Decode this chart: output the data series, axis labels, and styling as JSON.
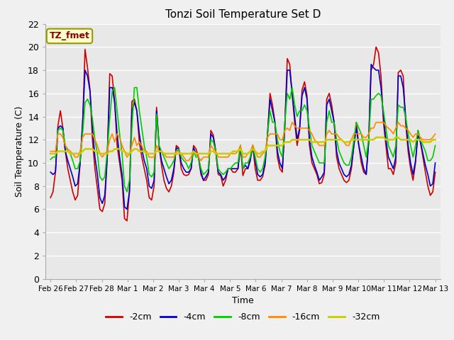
{
  "title": "Tonzi Soil Temperature Set D",
  "xlabel": "Time",
  "ylabel": "Soil Temperature (C)",
  "ylim": [
    0,
    22
  ],
  "yticks": [
    0,
    2,
    4,
    6,
    8,
    10,
    12,
    14,
    16,
    18,
    20,
    22
  ],
  "annotation": "TZ_fmet",
  "series": {
    "-2cm": {
      "color": "#cc0000",
      "lw": 1.2
    },
    "-4cm": {
      "color": "#0000cc",
      "lw": 1.2
    },
    "-8cm": {
      "color": "#00cc00",
      "lw": 1.2
    },
    "-16cm": {
      "color": "#ff8800",
      "lw": 1.2
    },
    "-32cm": {
      "color": "#cccc00",
      "lw": 1.8
    }
  },
  "x_tick_labels": [
    "Feb 26",
    "Feb 27",
    "Feb 28",
    "Mar 1",
    "Mar 2",
    "Mar 3",
    "Mar 4",
    "Mar 5",
    "Mar 6",
    "Mar 7",
    "Mar 8",
    "Mar 9",
    "Mar 10",
    "Mar 11",
    "Mar 12",
    "Mar 13"
  ],
  "data_2cm": [
    7.0,
    7.5,
    9.2,
    13.2,
    14.5,
    13.0,
    11.0,
    9.5,
    8.5,
    7.5,
    6.8,
    7.2,
    10.0,
    13.2,
    19.8,
    18.2,
    16.3,
    12.0,
    9.5,
    7.8,
    6.0,
    5.8,
    6.5,
    10.5,
    17.7,
    17.5,
    15.3,
    11.5,
    10.0,
    8.5,
    5.2,
    5.0,
    7.5,
    15.3,
    15.5,
    14.5,
    11.8,
    10.5,
    9.5,
    8.5,
    7.0,
    6.8,
    8.0,
    14.8,
    11.5,
    9.8,
    8.5,
    7.8,
    7.5,
    8.0,
    9.2,
    11.5,
    11.3,
    9.5,
    9.0,
    8.9,
    9.0,
    9.5,
    11.5,
    11.2,
    10.5,
    9.0,
    8.5,
    8.5,
    9.0,
    12.8,
    12.4,
    11.0,
    9.0,
    8.9,
    8.0,
    8.5,
    9.5,
    9.5,
    9.2,
    9.2,
    9.5,
    11.5,
    8.9,
    9.5,
    9.5,
    10.5,
    11.5,
    9.5,
    8.5,
    8.5,
    8.8,
    9.8,
    12.5,
    16.0,
    15.0,
    13.5,
    10.5,
    9.5,
    9.2,
    13.2,
    19.0,
    18.5,
    15.8,
    13.5,
    11.5,
    12.8,
    16.3,
    17.0,
    15.8,
    11.5,
    10.0,
    9.5,
    9.0,
    8.2,
    8.3,
    9.0,
    15.5,
    16.0,
    15.0,
    13.5,
    10.5,
    9.5,
    9.0,
    8.5,
    8.3,
    8.5,
    9.5,
    11.5,
    13.5,
    11.5,
    10.0,
    9.2,
    9.0,
    11.8,
    18.0,
    18.5,
    20.0,
    19.5,
    17.5,
    13.5,
    11.5,
    9.5,
    9.5,
    9.0,
    10.0,
    17.8,
    18.0,
    17.5,
    13.5,
    11.0,
    9.5,
    8.5,
    10.0,
    12.8,
    11.8,
    10.5,
    9.2,
    8.0,
    7.2,
    7.5,
    9.2
  ],
  "data_4cm": [
    9.2,
    9.0,
    9.2,
    13.0,
    13.2,
    13.0,
    11.0,
    10.2,
    9.5,
    8.8,
    8.0,
    8.2,
    10.0,
    13.5,
    18.0,
    17.5,
    16.2,
    13.0,
    10.5,
    9.0,
    7.0,
    6.5,
    7.2,
    10.5,
    16.5,
    16.5,
    15.2,
    12.5,
    10.5,
    9.0,
    6.2,
    6.0,
    7.5,
    14.5,
    15.2,
    14.5,
    12.5,
    11.2,
    10.2,
    9.5,
    8.0,
    7.8,
    8.5,
    14.5,
    11.5,
    10.2,
    9.5,
    8.8,
    8.2,
    8.5,
    9.5,
    11.3,
    11.2,
    10.0,
    9.5,
    9.2,
    9.2,
    9.5,
    11.3,
    10.8,
    10.5,
    9.2,
    8.5,
    8.8,
    9.2,
    12.5,
    12.2,
    11.0,
    9.2,
    9.0,
    8.5,
    8.8,
    9.5,
    9.5,
    9.5,
    9.5,
    9.5,
    11.5,
    9.5,
    9.8,
    9.5,
    10.2,
    11.5,
    10.2,
    9.0,
    8.8,
    9.0,
    10.0,
    12.5,
    15.5,
    14.5,
    13.5,
    11.0,
    10.0,
    9.5,
    13.2,
    18.0,
    18.0,
    16.0,
    14.0,
    12.0,
    13.0,
    15.8,
    16.5,
    15.5,
    12.0,
    10.5,
    9.8,
    9.2,
    8.5,
    8.8,
    9.2,
    15.0,
    15.5,
    14.5,
    13.5,
    11.0,
    10.0,
    9.5,
    9.0,
    8.8,
    9.0,
    9.8,
    11.5,
    13.0,
    11.5,
    10.5,
    9.5,
    9.0,
    11.8,
    18.5,
    18.2,
    18.0,
    18.0,
    16.5,
    14.0,
    12.0,
    10.5,
    10.0,
    9.5,
    10.5,
    17.5,
    17.5,
    16.5,
    14.0,
    11.5,
    10.0,
    9.0,
    10.2,
    12.5,
    11.8,
    10.8,
    9.8,
    9.0,
    8.0,
    8.2,
    10.0
  ],
  "data_8cm": [
    10.3,
    10.5,
    10.5,
    12.8,
    13.0,
    12.8,
    11.5,
    11.0,
    10.8,
    10.2,
    9.5,
    9.5,
    10.2,
    12.5,
    15.2,
    15.5,
    15.0,
    13.8,
    12.0,
    10.8,
    8.8,
    8.5,
    8.8,
    11.0,
    13.8,
    16.2,
    16.5,
    14.5,
    12.5,
    10.8,
    8.0,
    7.5,
    8.5,
    13.0,
    16.5,
    16.5,
    14.5,
    13.0,
    11.5,
    10.5,
    9.0,
    8.8,
    9.2,
    14.2,
    11.5,
    11.0,
    10.5,
    10.0,
    9.5,
    9.8,
    10.2,
    11.0,
    11.2,
    10.5,
    10.2,
    10.0,
    9.5,
    10.0,
    11.0,
    10.5,
    10.5,
    9.5,
    9.0,
    9.2,
    9.5,
    12.0,
    11.8,
    11.0,
    9.5,
    9.2,
    9.0,
    9.2,
    9.5,
    9.5,
    9.8,
    10.0,
    10.0,
    11.5,
    9.5,
    10.0,
    10.0,
    10.5,
    11.5,
    10.5,
    9.5,
    9.2,
    9.5,
    10.5,
    12.5,
    14.5,
    13.5,
    13.5,
    12.0,
    11.0,
    10.5,
    13.5,
    16.0,
    15.5,
    16.5,
    15.0,
    14.0,
    14.5,
    14.5,
    15.0,
    14.5,
    13.0,
    11.5,
    11.0,
    10.5,
    10.0,
    10.0,
    10.0,
    13.5,
    14.5,
    13.5,
    13.5,
    12.0,
    11.0,
    10.5,
    10.0,
    9.8,
    9.8,
    10.5,
    12.0,
    13.5,
    13.0,
    12.5,
    11.5,
    10.5,
    12.0,
    15.5,
    15.5,
    15.8,
    16.0,
    15.8,
    14.5,
    13.0,
    11.5,
    11.0,
    10.5,
    11.5,
    15.0,
    14.8,
    14.8,
    14.0,
    12.5,
    11.5,
    10.5,
    11.5,
    12.8,
    12.0,
    11.5,
    11.0,
    10.2,
    10.2,
    10.5,
    11.5
  ],
  "data_16cm": [
    11.0,
    11.0,
    11.0,
    12.5,
    12.5,
    12.2,
    11.5,
    11.2,
    11.0,
    10.8,
    10.5,
    10.5,
    11.0,
    12.2,
    12.5,
    12.5,
    12.5,
    12.5,
    12.0,
    11.5,
    10.8,
    10.5,
    10.8,
    11.0,
    12.0,
    12.5,
    11.8,
    12.5,
    12.2,
    11.5,
    11.0,
    10.5,
    10.8,
    11.5,
    12.2,
    11.5,
    11.8,
    11.5,
    11.0,
    11.0,
    10.5,
    10.5,
    10.5,
    11.5,
    11.0,
    11.0,
    10.8,
    10.5,
    10.5,
    10.5,
    10.5,
    11.0,
    11.0,
    10.8,
    10.5,
    10.2,
    10.2,
    10.5,
    11.0,
    10.8,
    10.5,
    10.2,
    10.5,
    10.5,
    10.5,
    11.5,
    11.2,
    11.0,
    10.5,
    10.5,
    10.5,
    10.5,
    10.5,
    10.8,
    10.8,
    10.8,
    11.0,
    11.5,
    10.5,
    10.5,
    10.8,
    11.0,
    11.5,
    11.0,
    10.5,
    10.5,
    10.8,
    11.0,
    12.2,
    12.5,
    12.5,
    12.5,
    12.5,
    12.0,
    12.0,
    12.8,
    13.0,
    12.8,
    13.5,
    13.2,
    13.0,
    13.0,
    13.0,
    13.0,
    13.0,
    12.8,
    12.5,
    12.0,
    11.8,
    11.5,
    11.5,
    11.5,
    12.5,
    12.8,
    12.5,
    12.5,
    12.5,
    12.2,
    12.0,
    11.8,
    11.5,
    11.5,
    12.0,
    12.5,
    12.5,
    12.5,
    12.5,
    12.2,
    12.2,
    12.5,
    13.0,
    13.0,
    13.5,
    13.5,
    13.5,
    13.5,
    13.2,
    13.0,
    12.8,
    12.5,
    13.0,
    13.5,
    13.2,
    13.2,
    13.0,
    12.8,
    12.5,
    12.2,
    12.5,
    12.5,
    12.2,
    12.0,
    12.0,
    12.0,
    12.0,
    12.2,
    12.5
  ],
  "data_32cm": [
    10.8,
    10.8,
    10.8,
    11.0,
    11.0,
    11.0,
    11.0,
    11.0,
    10.8,
    10.8,
    10.8,
    10.8,
    10.8,
    11.0,
    11.2,
    11.2,
    11.2,
    11.2,
    11.0,
    11.0,
    10.8,
    10.8,
    10.8,
    10.8,
    11.0,
    11.0,
    11.2,
    11.2,
    11.2,
    11.0,
    11.0,
    10.8,
    10.8,
    11.0,
    11.2,
    11.2,
    11.0,
    11.0,
    11.0,
    10.8,
    10.8,
    10.8,
    10.8,
    11.0,
    11.0,
    11.0,
    10.8,
    10.8,
    10.8,
    10.8,
    10.8,
    10.8,
    10.8,
    10.8,
    10.8,
    10.8,
    10.8,
    10.8,
    11.0,
    10.8,
    10.8,
    10.8,
    10.8,
    10.8,
    10.8,
    11.0,
    11.0,
    10.8,
    10.8,
    10.8,
    10.8,
    10.8,
    10.8,
    10.8,
    11.0,
    11.0,
    11.0,
    11.2,
    10.8,
    10.8,
    10.8,
    11.0,
    11.2,
    11.0,
    10.8,
    10.8,
    11.0,
    11.0,
    11.5,
    11.5,
    11.5,
    11.5,
    11.5,
    11.5,
    11.5,
    11.8,
    11.8,
    11.8,
    12.0,
    12.0,
    12.0,
    12.0,
    12.0,
    12.0,
    12.0,
    12.0,
    11.8,
    11.8,
    11.8,
    11.8,
    11.8,
    11.8,
    12.0,
    12.0,
    12.0,
    12.0,
    12.0,
    12.0,
    12.0,
    11.8,
    11.8,
    11.8,
    12.0,
    12.0,
    12.0,
    12.0,
    12.0,
    12.0,
    12.0,
    12.0,
    12.0,
    12.0,
    12.2,
    12.2,
    12.2,
    12.2,
    12.0,
    12.0,
    12.0,
    12.0,
    12.2,
    12.2,
    12.0,
    12.0,
    12.0,
    12.0,
    12.0,
    11.8,
    12.0,
    12.0,
    12.0,
    11.8,
    11.8,
    11.8,
    11.8,
    12.0,
    12.0
  ]
}
